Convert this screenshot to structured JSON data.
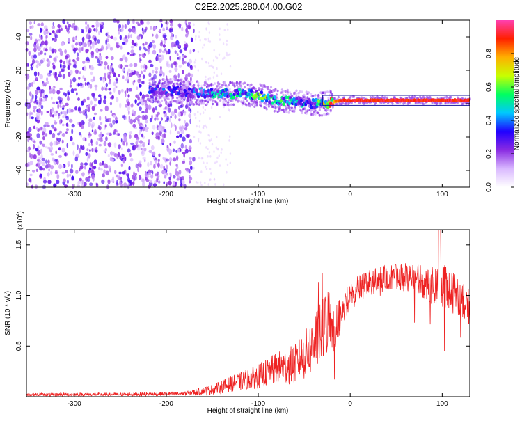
{
  "title": "C2E2.2025.280.04.00.G02",
  "chart_data": [
    {
      "type": "heatmap",
      "xlabel": "Height of straight line (km)",
      "ylabel": "Frequency (Hz)",
      "xlim": [
        -352,
        130
      ],
      "ylim": [
        -50,
        50
      ],
      "xticks": [
        -300,
        -200,
        -100,
        0,
        100
      ],
      "xtick_labels": [
        "-300",
        "-200",
        "-100",
        "0",
        "100"
      ],
      "yticks": [
        -40,
        -20,
        0,
        20,
        40
      ],
      "ytick_labels": [
        "-40",
        "-20",
        "0",
        "20",
        "40"
      ],
      "noise_region_x": [
        -352,
        -170
      ],
      "signal_band": [
        {
          "x": -218,
          "y": 8,
          "amp": 0.3
        },
        {
          "x": -200,
          "y": 8,
          "amp": 0.3
        },
        {
          "x": -180,
          "y": 7,
          "amp": 0.25
        },
        {
          "x": -160,
          "y": 6,
          "amp": 0.35
        },
        {
          "x": -140,
          "y": 6,
          "amp": 0.4
        },
        {
          "x": -120,
          "y": 6,
          "amp": 0.4
        },
        {
          "x": -100,
          "y": 5,
          "amp": 0.5
        },
        {
          "x": -80,
          "y": 2,
          "amp": 0.45
        },
        {
          "x": -60,
          "y": 1,
          "amp": 0.4
        },
        {
          "x": -40,
          "y": 0,
          "amp": 0.35
        },
        {
          "x": -30,
          "y": 0,
          "amp": 0.6
        },
        {
          "x": -10,
          "y": 2,
          "amp": 0.95
        },
        {
          "x": 20,
          "y": 2,
          "amp": 0.95
        },
        {
          "x": 60,
          "y": 2,
          "amp": 0.95
        },
        {
          "x": 100,
          "y": 2,
          "amp": 0.95
        },
        {
          "x": 130,
          "y": 2,
          "amp": 0.95
        }
      ],
      "colorbar": {
        "label": "Normalized spectral amplitude",
        "ticks": [
          "0.0",
          "0.2",
          "0.4",
          "0.6",
          "0.8"
        ],
        "tick_values": [
          0.0,
          0.2,
          0.4,
          0.6,
          0.8
        ],
        "range": [
          0,
          1
        ],
        "colors": [
          "#ffffff",
          "#d9b8ff",
          "#8a2be2",
          "#2000ff",
          "#00c8ff",
          "#00ff60",
          "#c8ff00",
          "#ffb000",
          "#ff2000",
          "#ff40b0"
        ]
      }
    },
    {
      "type": "line",
      "xlabel": "Height of straight line (km)",
      "ylabel": "SNR (10 * v/v)",
      "scale_label": "(x10",
      "scale_exp": "4",
      "scale_close": ")",
      "xlim": [
        -352,
        130
      ],
      "ylim": [
        0,
        16500
      ],
      "xticks": [
        -300,
        -200,
        -100,
        0,
        100
      ],
      "xtick_labels": [
        "-300",
        "-200",
        "-100",
        "0",
        "100"
      ],
      "yticks": [
        5000,
        10000,
        15000
      ],
      "ytick_labels": [
        "0.5",
        "1.0",
        "1.5"
      ],
      "color": "#ee2222",
      "envelope": {
        "x": [
          -352,
          -250,
          -180,
          -150,
          -120,
          -100,
          -80,
          -60,
          -45,
          -30,
          -22,
          -15,
          -10,
          0,
          20,
          40,
          60,
          80,
          90,
          100,
          110,
          130
        ],
        "y": [
          200,
          220,
          300,
          700,
          1500,
          2000,
          2800,
          3200,
          4500,
          6500,
          8000,
          9000,
          10000,
          11500,
          12500,
          13000,
          13200,
          13000,
          13000,
          13500,
          12500,
          10500
        ],
        "spread": [
          150,
          160,
          200,
          500,
          900,
          1200,
          1600,
          2000,
          2600,
          3200,
          3500,
          3000,
          2500,
          2000,
          1800,
          1800,
          2000,
          2500,
          2800,
          3500,
          3000,
          2500
        ]
      }
    }
  ]
}
